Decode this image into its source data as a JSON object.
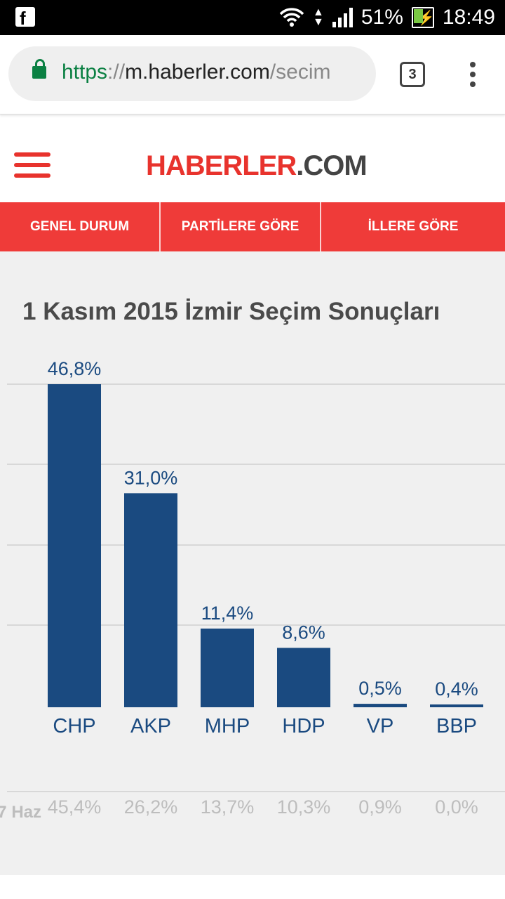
{
  "status_bar": {
    "battery": "51%",
    "time": "18:49"
  },
  "browser": {
    "url_scheme": "https",
    "url_separator": "://",
    "url_host": "m.haberler.com",
    "url_path": "/secim",
    "tab_count": "3"
  },
  "site": {
    "logo_part1": "HABERLER",
    "logo_part2": ".COM",
    "brand_color": "#e8332d"
  },
  "nav": {
    "tabs": [
      {
        "label": "GENEL DURUM"
      },
      {
        "label": "PARTİLERE GÖRE"
      },
      {
        "label": "İLLERE GÖRE"
      }
    ]
  },
  "page": {
    "title": "1 Kasım 2015 İzmir Seçim Sonuçları"
  },
  "chart_data": {
    "type": "bar",
    "categories": [
      "CHP",
      "AKP",
      "MHP",
      "HDP",
      "VP",
      "BBP"
    ],
    "values": [
      46.8,
      31.0,
      11.4,
      8.6,
      0.5,
      0.4
    ],
    "value_labels": [
      "46,8%",
      "31,0%",
      "11,4%",
      "8,6%",
      "0,5%",
      "0,4%"
    ],
    "bar_color": "#1a4a80",
    "previous_label": "7 Haz",
    "previous_values": [
      45.4,
      26.2,
      13.7,
      10.3,
      0.9,
      0.0
    ],
    "previous_value_labels": [
      "45,4%",
      "26,2%",
      "13,7%",
      "10,3%",
      "0,9%",
      "0,0%"
    ],
    "ylim": [
      0,
      46.8
    ],
    "grid": true
  }
}
